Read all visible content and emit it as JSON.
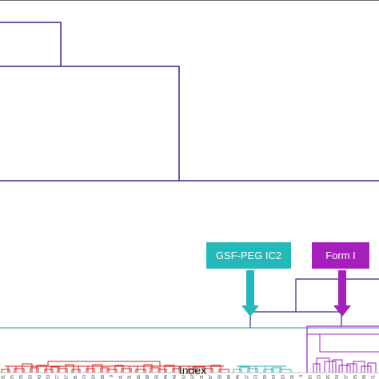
{
  "chart_data": {
    "type": "dendrogram",
    "xlabel": "Index",
    "leaf_labels": [
      "61",
      "75",
      "105",
      "50",
      "43",
      "53",
      "77",
      "17",
      "81",
      "73",
      "20",
      "68",
      "9",
      "41",
      "31",
      "26",
      "98",
      "36",
      "45",
      "49",
      "62",
      "92",
      "11",
      "87",
      "38",
      "88",
      "45",
      "107",
      "73",
      "139",
      "54",
      "10",
      "106",
      "4",
      "16",
      "23",
      "26",
      "34",
      "37",
      "25",
      "38",
      "71"
    ],
    "clusters": [
      {
        "name": "red",
        "color": "#d42020"
      },
      {
        "name": "cyan",
        "color": "#2ab3b3"
      },
      {
        "name": "purple",
        "color": "#a020c0"
      }
    ],
    "tree_color": "#2b2b8f",
    "threshold_color": "#2a8fa0",
    "annotations": [
      {
        "label": "GSF-PEG IC2",
        "box_color": "#25b8b8"
      },
      {
        "label": "Form I",
        "box_color": "#a61fbd"
      }
    ]
  }
}
